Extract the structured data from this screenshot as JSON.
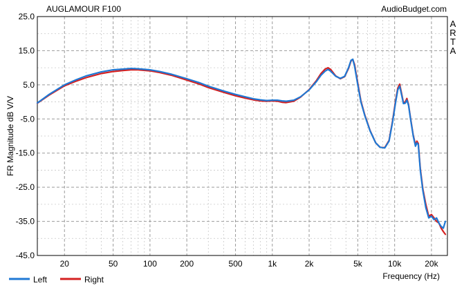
{
  "chart_data": {
    "type": "line",
    "title": "AUGLAMOUR F100",
    "source": "AudioBudget.com",
    "side_label": [
      "A",
      "R",
      "T",
      "A"
    ],
    "xlabel": "Frequency (Hz)",
    "ylabel": "FR Magnitude dB V/V",
    "x_scale": "log",
    "xlim": [
      12,
      27000
    ],
    "ylim": [
      -45,
      25
    ],
    "x_ticks": [
      {
        "value": 20,
        "label": "20"
      },
      {
        "value": 50,
        "label": "50"
      },
      {
        "value": 100,
        "label": "100"
      },
      {
        "value": 200,
        "label": "200"
      },
      {
        "value": 500,
        "label": "500"
      },
      {
        "value": 1000,
        "label": "1k"
      },
      {
        "value": 2000,
        "label": "2k"
      },
      {
        "value": 5000,
        "label": "5k"
      },
      {
        "value": 10000,
        "label": "10k"
      },
      {
        "value": 20000,
        "label": "20k"
      }
    ],
    "y_ticks": [
      25,
      15,
      5,
      -5,
      -15,
      -25,
      -35,
      -45
    ],
    "y_tick_labels": [
      "25.0",
      "15.0",
      "5.0",
      "-5.0",
      "-15.0",
      "-25.0",
      "-35.0",
      "-45.0"
    ],
    "grid": true,
    "legend_position": "bottom-left",
    "series": [
      {
        "name": "Left",
        "color": "#1f78d4",
        "points": [
          [
            12,
            -0.3
          ],
          [
            15,
            2.2
          ],
          [
            20,
            5.0
          ],
          [
            25,
            6.5
          ],
          [
            30,
            7.6
          ],
          [
            40,
            8.8
          ],
          [
            50,
            9.4
          ],
          [
            60,
            9.6
          ],
          [
            70,
            9.8
          ],
          [
            80,
            9.7
          ],
          [
            100,
            9.4
          ],
          [
            120,
            8.9
          ],
          [
            150,
            8.1
          ],
          [
            200,
            6.8
          ],
          [
            250,
            5.7
          ],
          [
            300,
            4.6
          ],
          [
            400,
            3.2
          ],
          [
            500,
            2.2
          ],
          [
            600,
            1.5
          ],
          [
            700,
            0.9
          ],
          [
            800,
            0.6
          ],
          [
            900,
            0.4
          ],
          [
            1000,
            0.5
          ],
          [
            1100,
            0.5
          ],
          [
            1200,
            0.3
          ],
          [
            1300,
            0.2
          ],
          [
            1500,
            0.5
          ],
          [
            1700,
            1.5
          ],
          [
            2000,
            3.5
          ],
          [
            2300,
            6.0
          ],
          [
            2500,
            7.8
          ],
          [
            2700,
            9.0
          ],
          [
            2850,
            9.5
          ],
          [
            3000,
            9.0
          ],
          [
            3300,
            7.5
          ],
          [
            3600,
            6.9
          ],
          [
            3900,
            7.5
          ],
          [
            4200,
            10.0
          ],
          [
            4400,
            12.2
          ],
          [
            4550,
            12.5
          ],
          [
            4700,
            10.5
          ],
          [
            5000,
            5.0
          ],
          [
            5300,
            0.0
          ],
          [
            5700,
            -4.0
          ],
          [
            6300,
            -8.5
          ],
          [
            7000,
            -12.0
          ],
          [
            7600,
            -13.3
          ],
          [
            8300,
            -13.5
          ],
          [
            9000,
            -11.5
          ],
          [
            9600,
            -6.0
          ],
          [
            10200,
            0.0
          ],
          [
            10600,
            3.5
          ],
          [
            11000,
            4.6
          ],
          [
            11400,
            2.0
          ],
          [
            11800,
            -0.5
          ],
          [
            12200,
            -0.4
          ],
          [
            12600,
            0.5
          ],
          [
            13000,
            -1.0
          ],
          [
            13500,
            -5.0
          ],
          [
            14200,
            -10.0
          ],
          [
            14800,
            -13.0
          ],
          [
            15200,
            -12.0
          ],
          [
            15600,
            -12.5
          ],
          [
            16200,
            -20.0
          ],
          [
            17000,
            -26.0
          ],
          [
            18000,
            -31.0
          ],
          [
            19000,
            -34.0
          ],
          [
            20000,
            -33.5
          ],
          [
            21000,
            -34.5
          ],
          [
            22000,
            -34.0
          ],
          [
            23000,
            -35.5
          ],
          [
            24000,
            -36.5
          ],
          [
            25000,
            -37.0
          ],
          [
            26000,
            -35.0
          ]
        ]
      },
      {
        "name": "Right",
        "color": "#d42020",
        "points": [
          [
            12,
            -0.4
          ],
          [
            15,
            2.0
          ],
          [
            20,
            4.7
          ],
          [
            25,
            6.1
          ],
          [
            30,
            7.1
          ],
          [
            40,
            8.3
          ],
          [
            50,
            8.9
          ],
          [
            60,
            9.2
          ],
          [
            70,
            9.4
          ],
          [
            80,
            9.4
          ],
          [
            100,
            9.1
          ],
          [
            120,
            8.6
          ],
          [
            150,
            7.8
          ],
          [
            200,
            6.4
          ],
          [
            250,
            5.3
          ],
          [
            300,
            4.2
          ],
          [
            400,
            2.8
          ],
          [
            500,
            1.8
          ],
          [
            600,
            1.1
          ],
          [
            700,
            0.6
          ],
          [
            800,
            0.3
          ],
          [
            900,
            0.2
          ],
          [
            1000,
            0.3
          ],
          [
            1100,
            0.2
          ],
          [
            1200,
            -0.1
          ],
          [
            1300,
            -0.2
          ],
          [
            1500,
            0.2
          ],
          [
            1700,
            1.4
          ],
          [
            2000,
            3.6
          ],
          [
            2300,
            6.3
          ],
          [
            2500,
            8.3
          ],
          [
            2700,
            9.6
          ],
          [
            2850,
            10.0
          ],
          [
            3000,
            9.5
          ],
          [
            3300,
            7.6
          ],
          [
            3600,
            6.8
          ],
          [
            3900,
            7.4
          ],
          [
            4200,
            9.8
          ],
          [
            4400,
            12.0
          ],
          [
            4550,
            12.4
          ],
          [
            4700,
            11.0
          ],
          [
            5000,
            5.5
          ],
          [
            5300,
            0.3
          ],
          [
            5700,
            -3.8
          ],
          [
            6300,
            -8.4
          ],
          [
            7000,
            -12.0
          ],
          [
            7600,
            -13.3
          ],
          [
            8300,
            -13.4
          ],
          [
            9000,
            -11.3
          ],
          [
            9600,
            -5.7
          ],
          [
            10200,
            0.5
          ],
          [
            10600,
            4.0
          ],
          [
            11000,
            5.2
          ],
          [
            11400,
            2.4
          ],
          [
            11800,
            -0.2
          ],
          [
            12200,
            0.0
          ],
          [
            12600,
            1.0
          ],
          [
            13000,
            -0.8
          ],
          [
            13500,
            -4.8
          ],
          [
            14200,
            -9.8
          ],
          [
            14800,
            -12.5
          ],
          [
            15200,
            -11.5
          ],
          [
            15600,
            -12.2
          ],
          [
            16200,
            -19.5
          ],
          [
            17000,
            -25.5
          ],
          [
            18000,
            -30.0
          ],
          [
            19000,
            -33.5
          ],
          [
            20000,
            -33.0
          ],
          [
            21000,
            -34.0
          ],
          [
            22000,
            -35.0
          ],
          [
            23000,
            -35.5
          ],
          [
            24000,
            -37.0
          ],
          [
            25000,
            -38.0
          ],
          [
            26000,
            -38.8
          ]
        ]
      }
    ]
  }
}
